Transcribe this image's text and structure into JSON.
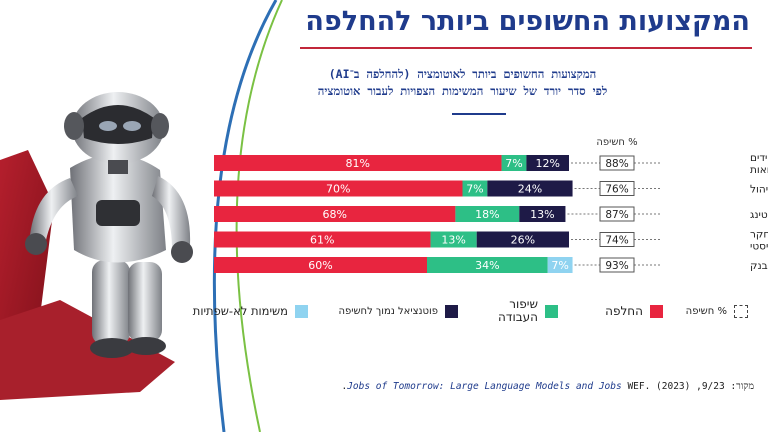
{
  "header": {
    "title": "המקצועות החשופים ביותר להחלפה",
    "subtitle_line1": "המקצועות החשופים ביותר לאוטומציה (להחלפה ב־AI)",
    "subtitle_line2": "לפי סדר יורד של שיעור המשימות הצפויות לעבור אוטומציה"
  },
  "chart_data": {
    "type": "bar",
    "orientation": "horizontal-stacked",
    "exposure_header": "% חשיפה",
    "categories": [
      [
        "קופאים, פקידים",
        "ומאשרי הלוואות"
      ],
      [
        "יועצי ניהול"
      ],
      [
        "טלמרקטינג"
      ],
      [
        "עוזר מחקר",
        "סטטיסטי"
      ],
      [
        "טלר בבנק"
      ]
    ],
    "exposure": [
      88,
      76,
      87,
      74,
      93
    ],
    "series": [
      {
        "name": "החלפה",
        "color": "#e8253f",
        "values": [
          81,
          70,
          68,
          61,
          60
        ]
      },
      {
        "name": "שיפור העבודה",
        "color": "#2dbf86",
        "values": [
          7,
          7,
          18,
          13,
          34
        ]
      },
      {
        "name": "פוטנציאל נמוך לחשיפה",
        "color": "#1e1a47",
        "values": [
          12,
          24,
          13,
          26,
          0
        ]
      },
      {
        "name": "משימות לא-שפתיות",
        "color": "#8fd3f0",
        "values": [
          0,
          0,
          0,
          0,
          7
        ]
      }
    ],
    "xlim": [
      0,
      100
    ]
  },
  "legend": [
    {
      "label": "% חשיפה",
      "style": "dashed-box"
    },
    {
      "label": "החלפה",
      "color": "#e8253f"
    },
    {
      "label": "שיפור\nהעבודה",
      "color": "#2dbf86"
    },
    {
      "label": "פוטנציאל נמוך לחשיפה",
      "color": "#1e1a47"
    },
    {
      "label": "משימות לא-שפתיות",
      "color": "#8fd3f0"
    }
  ],
  "source": {
    "prefix": "מקור:",
    "italic": "Jobs of Tomorrow: Large Language Models and Jobs",
    "date": "9/23",
    "author": "WEF. (2023)."
  },
  "colors": {
    "title": "#1f3b8c",
    "accent": "#c2273a",
    "curve_blue": "#2d6fb5",
    "curve_green": "#7ac143"
  }
}
